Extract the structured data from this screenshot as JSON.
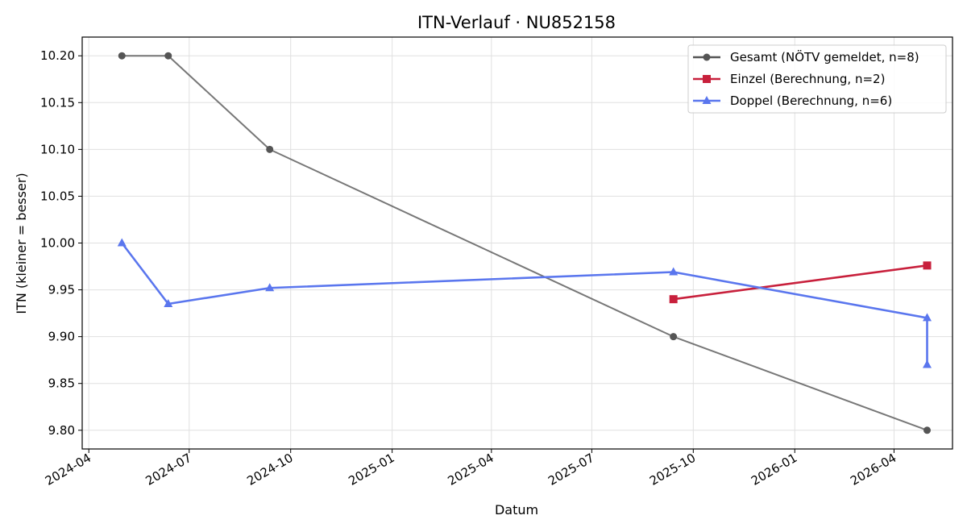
{
  "chart_data": {
    "type": "line",
    "title": "ITN-Verlauf · NU852158",
    "xlabel": "Datum",
    "ylabel": "ITN  (kleiner = besser)",
    "x_is_date": true,
    "xlim": [
      "2024-03-26",
      "2026-05-24"
    ],
    "ylim": [
      9.78,
      10.22
    ],
    "x_ticks": [
      "2024-04-01",
      "2024-07-01",
      "2024-10-01",
      "2025-01-01",
      "2025-04-01",
      "2025-07-01",
      "2025-10-01",
      "2026-01-01",
      "2026-04-01"
    ],
    "x_tick_labels": [
      "2024-04",
      "2024-07",
      "2024-10",
      "2025-01",
      "2025-04",
      "2025-07",
      "2025-10",
      "2026-01",
      "2026-04"
    ],
    "y_ticks": [
      9.8,
      9.85,
      9.9,
      9.95,
      10.0,
      10.05,
      10.1,
      10.15,
      10.2
    ],
    "y_tick_labels": [
      "9.80",
      "9.85",
      "9.90",
      "9.95",
      "10.00",
      "10.05",
      "10.10",
      "10.15",
      "10.20"
    ],
    "grid": true,
    "legend_position": "top-right",
    "series": [
      {
        "name": "Gesamt (NÖTV gemeldet, n=8)",
        "color": "#555555",
        "marker": "circle",
        "points": [
          {
            "x": "2024-05-01",
            "y": 10.2
          },
          {
            "x": "2024-06-12",
            "y": 10.2
          },
          {
            "x": "2024-09-12",
            "y": 10.1
          },
          {
            "x": "2025-09-13",
            "y": 9.9
          },
          {
            "x": "2026-05-01",
            "y": 9.8
          }
        ]
      },
      {
        "name": "Einzel (Berechnung, n=2)",
        "color": "#c8203c",
        "marker": "square",
        "points": [
          {
            "x": "2025-09-13",
            "y": 9.94
          },
          {
            "x": "2026-05-01",
            "y": 9.976
          }
        ]
      },
      {
        "name": "Doppel (Berechnung, n=6)",
        "color": "#5a76ee",
        "marker": "triangle",
        "points": [
          {
            "x": "2024-05-01",
            "y": 10.0
          },
          {
            "x": "2024-06-12",
            "y": 9.935
          },
          {
            "x": "2024-09-12",
            "y": 9.952
          },
          {
            "x": "2025-09-13",
            "y": 9.969
          },
          {
            "x": "2026-05-01",
            "y": 9.92
          },
          {
            "x": "2026-05-01",
            "y": 9.87
          }
        ]
      }
    ]
  }
}
